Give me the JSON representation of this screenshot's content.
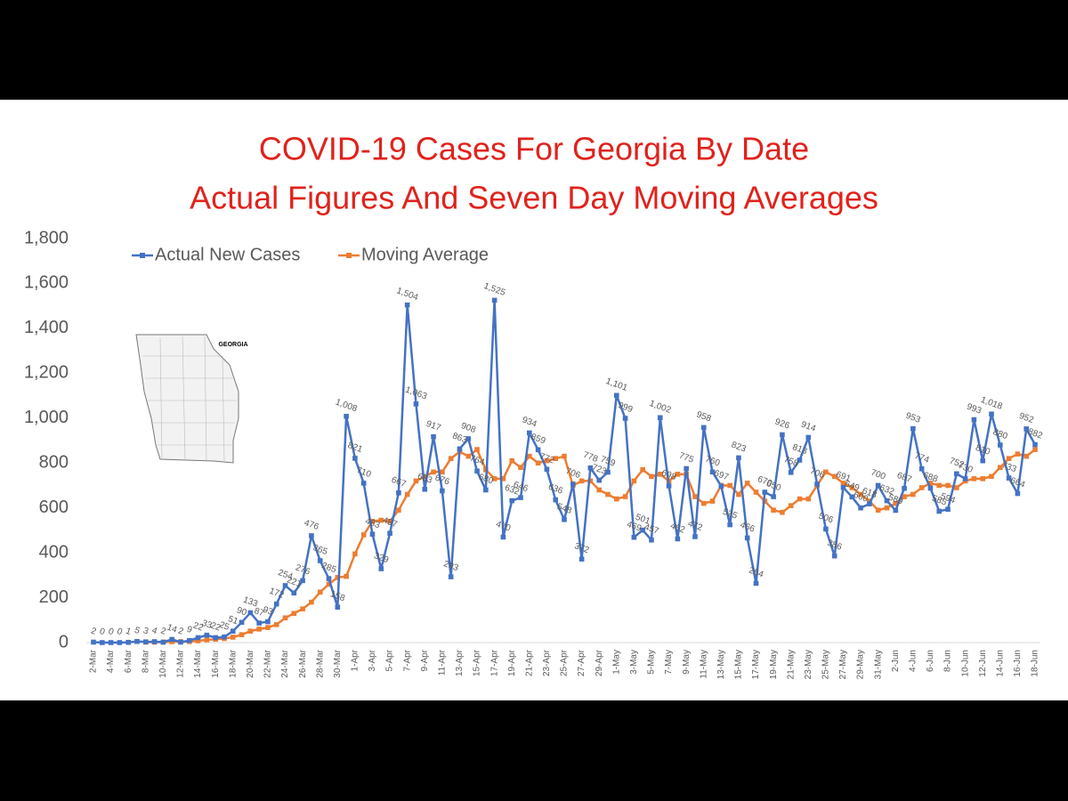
{
  "chart_data": {
    "type": "line",
    "title": "COVID-19 Cases For Georgia By Date",
    "subtitle": "Actual Figures And Seven Day Moving Averages",
    "inset_label": "GEORGIA",
    "categories": [
      "2-Mar",
      null,
      "4-Mar",
      null,
      "6-Mar",
      null,
      "8-Mar",
      null,
      "10-Mar",
      null,
      "12-Mar",
      null,
      "14-Mar",
      null,
      "16-Mar",
      null,
      "18-Mar",
      null,
      "20-Mar",
      null,
      "22-Mar",
      null,
      "24-Mar",
      null,
      "26-Mar",
      null,
      "28-Mar",
      null,
      "30-Mar",
      null,
      "1-Apr",
      null,
      "3-Apr",
      null,
      "5-Apr",
      null,
      "7-Apr",
      null,
      "9-Apr",
      null,
      "11-Apr",
      null,
      "13-Apr",
      null,
      "15-Apr",
      null,
      "17-Apr",
      null,
      "19-Apr",
      null,
      "21-Apr",
      null,
      "23-Apr",
      null,
      "25-Apr",
      null,
      "27-Apr",
      null,
      "29-Apr",
      null,
      "1-May",
      null,
      "3-May",
      null,
      "5-May",
      null,
      "7-May",
      null,
      "9-May",
      null,
      "11-May",
      null,
      "13-May",
      null,
      "15-May",
      null,
      "17-May",
      null,
      "19-May",
      null,
      "21-May",
      null,
      "23-May",
      null,
      "25-May",
      null,
      "27-May",
      null,
      "29-May",
      null,
      "31-May",
      null,
      "2-Jun",
      null,
      "4-Jun",
      null,
      "6-Jun",
      null,
      "8-Jun",
      null,
      "10-Jun",
      null,
      "12-Jun",
      null,
      "14-Jun",
      null,
      "16-Jun",
      null,
      "18-Jun"
    ],
    "series": [
      {
        "name": "Actual New Cases",
        "color": "#4472c4",
        "values": [
          2,
          0,
          0,
          0,
          1,
          5,
          3,
          4,
          2,
          14,
          2,
          9,
          22,
          33,
          22,
          25,
          51,
          90,
          133,
          87,
          93,
          172,
          254,
          221,
          276,
          476,
          365,
          285,
          158,
          1008,
          821,
          710,
          483,
          329,
          487,
          667,
          1504,
          1063,
          683,
          917,
          676,
          293,
          863,
          908,
          764,
          680,
          1525,
          470,
          632,
          646,
          934,
          859,
          772,
          636,
          548,
          706,
          372,
          778,
          723,
          759,
          1101,
          999,
          469,
          501,
          457,
          1002,
          698,
          462,
          775,
          472,
          958,
          760,
          697,
          525,
          823,
          466,
          264,
          670,
          650,
          926,
          758,
          813,
          914,
          706,
          506,
          386,
          691,
          649,
          600,
          618,
          700,
          632,
          589,
          687,
          953,
          774,
          688,
          585,
          594,
          752,
          730,
          993,
          810,
          1018,
          880,
          733,
          664,
          952,
          882
        ],
        "value_labels": [
          "2",
          "0",
          "0",
          "0",
          "1",
          "5",
          "3",
          "4",
          "2",
          "14",
          "2",
          "9",
          "22",
          "33",
          "22",
          "25",
          "51",
          "90",
          "133",
          "87",
          "93",
          "172",
          "254",
          "221",
          "276",
          "476",
          "365",
          "285",
          "158",
          "1,008",
          "821",
          "710",
          "483",
          "329",
          "487",
          "667",
          "1,504",
          "1,063",
          "683",
          "917",
          "676",
          "293",
          "863",
          "908",
          "764",
          "680",
          "1,525",
          "470",
          "632",
          "646",
          "934",
          "859",
          "772",
          "636",
          "548",
          "706",
          "372",
          "778",
          "723",
          "759",
          "1,101",
          "999",
          "469",
          "501",
          "457",
          "1,002",
          "698",
          "462",
          "775",
          "472",
          "958",
          "760",
          "697",
          "525",
          "823",
          "466",
          "264",
          "670",
          "650",
          "926",
          "758",
          "813",
          "914",
          "706",
          "506",
          "386",
          "691",
          "649",
          "600",
          "618",
          "700",
          "632",
          "589",
          "687",
          "953",
          "774",
          "688",
          "585",
          "594",
          "752",
          "730",
          "993",
          "810",
          "1,018",
          "880",
          "733",
          "664",
          "952",
          "882"
        ]
      },
      {
        "name": "Moving Average",
        "color": "#ed7d31",
        "values": [
          null,
          null,
          null,
          null,
          null,
          null,
          2,
          2,
          2,
          4,
          4,
          5,
          8,
          12,
          15,
          18,
          24,
          35,
          51,
          60,
          67,
          80,
          110,
          130,
          150,
          180,
          225,
          260,
          290,
          295,
          395,
          480,
          540,
          545,
          540,
          590,
          660,
          720,
          740,
          760,
          760,
          820,
          850,
          830,
          860,
          770,
          730,
          730,
          810,
          780,
          830,
          800,
          810,
          820,
          830,
          700,
          720,
          720,
          680,
          660,
          640,
          650,
          720,
          770,
          740,
          750,
          720,
          750,
          750,
          650,
          620,
          630,
          700,
          700,
          660,
          710,
          670,
          630,
          590,
          580,
          610,
          640,
          640,
          700,
          760,
          740,
          710,
          690,
          660,
          630,
          590,
          600,
          620,
          650,
          660,
          690,
          710,
          700,
          700,
          690,
          720,
          730,
          730,
          740,
          780,
          820,
          840,
          830,
          860
        ]
      }
    ],
    "ylim": [
      0,
      1800
    ],
    "yticks": [
      0,
      200,
      400,
      600,
      800,
      {
        "value": 1000,
        "label": "1,000"
      },
      {
        "value": 1200,
        "label": "1,200"
      },
      {
        "value": 1400,
        "label": "1,400"
      },
      {
        "value": 1600,
        "label": "1,600"
      },
      {
        "value": 1800,
        "label": "1,800"
      }
    ],
    "grid": false,
    "legend": "top-left"
  }
}
